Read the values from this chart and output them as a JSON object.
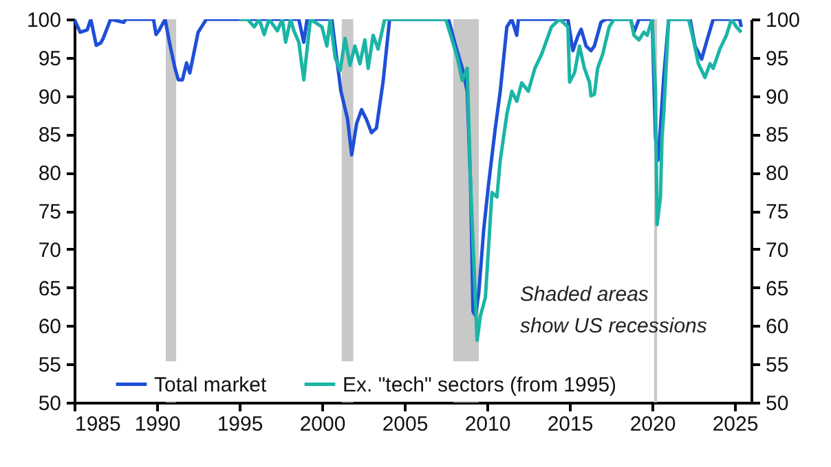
{
  "chart_data": {
    "type": "line",
    "xlim": [
      1985,
      2026
    ],
    "xticks": [
      1985,
      1990,
      1995,
      2000,
      2005,
      2010,
      2015,
      2020,
      2025
    ],
    "ylim": [
      50,
      100
    ],
    "yticks": [
      50,
      55,
      60,
      65,
      70,
      75,
      80,
      85,
      90,
      95,
      100
    ],
    "y2lim": [
      50,
      100
    ],
    "y2ticks": [
      50,
      55,
      60,
      65,
      70,
      75,
      80,
      85,
      90,
      95,
      100
    ],
    "legend": "bottom",
    "series": [
      {
        "name": "Total market",
        "color": "#1f4fd8",
        "x": [
          1985.0,
          1985.36,
          1985.78,
          1986.0,
          1986.33,
          1986.6,
          1986.75,
          1987.2,
          1988.0,
          1988.1,
          1989.8,
          1989.95,
          1990.15,
          1990.5,
          1990.8,
          1991.1,
          1991.3,
          1991.55,
          1991.8,
          1992.0,
          1992.5,
          1993.0,
          1998.6,
          1998.9,
          1999.1,
          2000.6,
          2000.8,
          2001.15,
          2001.55,
          2001.8,
          2002.1,
          2002.4,
          2002.7,
          2003.0,
          2003.3,
          2003.7,
          2004.1,
          2007.67,
          2008.1,
          2008.5,
          2008.8,
          2009.0,
          2009.15,
          2009.3,
          2009.5,
          2009.8,
          2010.1,
          2010.5,
          2010.8,
          2011.2,
          2011.5,
          2011.8,
          2011.9,
          2014.9,
          2015.2,
          2015.5,
          2015.7,
          2016.0,
          2016.3,
          2016.5,
          2016.9,
          2017.2,
          2018.7,
          2018.9,
          2019.2,
          2020.0,
          2020.2,
          2020.35,
          2020.5,
          2020.7,
          2021.0,
          2022.3,
          2022.6,
          2023.0,
          2023.3,
          2023.7,
          2025.3,
          2025.4
        ],
        "values": [
          100,
          98.3,
          98.6,
          100,
          96.6,
          96.9,
          97.5,
          100,
          99.6,
          100,
          100,
          98,
          98.6,
          100,
          96.6,
          93.6,
          92.1,
          92.1,
          94.3,
          93,
          98.3,
          100,
          100,
          97,
          100,
          100,
          96.5,
          90.6,
          87,
          82.3,
          86.4,
          88.2,
          86.9,
          85.2,
          85.8,
          91.8,
          100,
          100,
          96.5,
          93.6,
          90.6,
          78.6,
          61.9,
          61.3,
          64.3,
          72.6,
          78.6,
          85.8,
          90.6,
          99,
          100,
          97.9,
          100,
          100,
          95.9,
          97.8,
          98.7,
          96.5,
          95.9,
          96.5,
          99.6,
          100,
          100,
          98.3,
          100,
          100,
          84.6,
          81.6,
          85.8,
          92.4,
          100,
          100,
          96.5,
          94.8,
          97.1,
          100,
          100,
          99
        ]
      },
      {
        "name": "Ex. \"tech\" sectors (from 1995)",
        "color": "#1ab5a5",
        "x": [
          1995.0,
          1995.5,
          1995.9,
          1996.2,
          1996.5,
          1996.8,
          1997.3,
          1997.6,
          1997.8,
          1998.1,
          1998.3,
          1998.6,
          1998.9,
          1999.3,
          2000.0,
          2000.3,
          2000.5,
          2000.8,
          2001.1,
          2001.4,
          2001.7,
          2002.0,
          2002.3,
          2002.6,
          2002.8,
          2003.1,
          2003.4,
          2003.8,
          2007.5,
          2007.8,
          2008.2,
          2008.5,
          2008.8,
          2009.0,
          2009.4,
          2009.6,
          2009.9,
          2010.3,
          2010.6,
          2010.8,
          2011.2,
          2011.5,
          2011.8,
          2012.1,
          2012.5,
          2012.9,
          2013.3,
          2013.9,
          2014.4,
          2014.9,
          2015.0,
          2015.3,
          2015.6,
          2015.9,
          2016.2,
          2016.3,
          2016.5,
          2016.7,
          2017.0,
          2017.4,
          2017.7,
          2018.7,
          2018.9,
          2019.2,
          2019.5,
          2019.7,
          2020.0,
          2020.2,
          2020.3,
          2020.5,
          2020.6,
          2020.7,
          2021.0,
          2022.2,
          2022.4,
          2022.8,
          2023.2,
          2023.5,
          2023.7,
          2024.1,
          2024.5,
          2024.8,
          2025.1,
          2025.4
        ],
        "values": [
          100,
          100,
          99,
          100,
          98,
          100,
          98.5,
          100,
          97,
          100,
          98.5,
          97,
          92.1,
          100,
          99,
          96.5,
          100,
          95,
          93.3,
          97.5,
          94,
          96.5,
          94.2,
          97.3,
          93.6,
          97.9,
          96.1,
          100,
          100,
          97.9,
          95,
          92,
          93.6,
          78.6,
          58.1,
          61.3,
          63.7,
          77.4,
          76.8,
          81.6,
          87.6,
          90.6,
          89.3,
          91.7,
          90.6,
          93.6,
          95.4,
          99,
          100,
          99,
          91.8,
          93,
          96.5,
          93.6,
          91.8,
          90,
          90.2,
          93.6,
          95.4,
          99,
          100,
          100,
          97.9,
          97.3,
          98.3,
          97.9,
          100,
          90.6,
          73.2,
          76.8,
          84.6,
          87.6,
          100,
          100,
          98.3,
          94.2,
          92.4,
          94.2,
          93.6,
          96.1,
          97.9,
          100,
          99,
          98.3
        ]
      }
    ],
    "bands": [
      {
        "axis": "x",
        "from": 1990.54,
        "to": 1991.17,
        "color": "#c8c8c8"
      },
      {
        "axis": "x",
        "from": 2001.2,
        "to": 2001.9,
        "color": "#c8c8c8"
      },
      {
        "axis": "x",
        "from": 2007.95,
        "to": 2009.5,
        "color": "#c8c8c8"
      },
      {
        "axis": "x",
        "from": 2020.12,
        "to": 2020.3,
        "color": "#c8c8c8"
      }
    ],
    "annotations": [
      "Shaded areas\nshow US recessions"
    ]
  }
}
